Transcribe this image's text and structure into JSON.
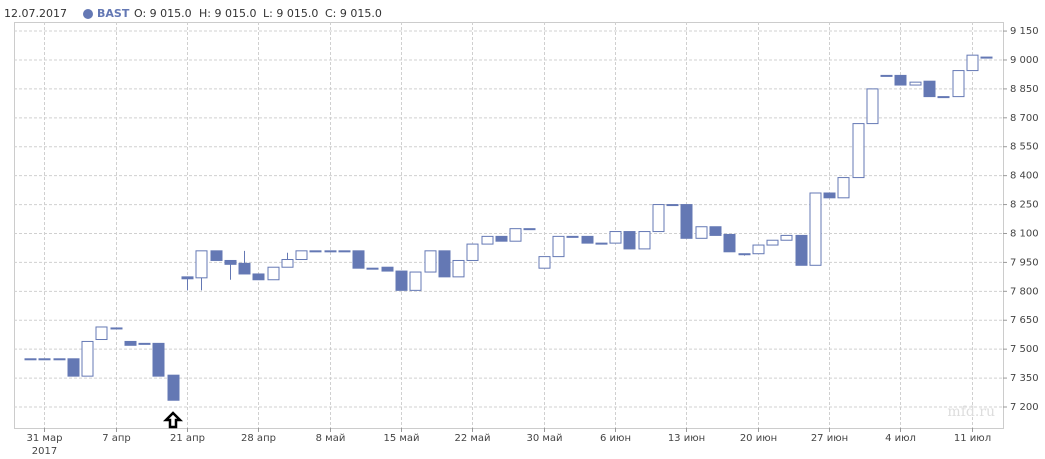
{
  "chart_data": {
    "type": "candlestick",
    "date_label": "12.07.2017",
    "ohlc_labels": [
      "O: 9 015.0",
      "H: 9 015.0",
      "L: 9 015.0",
      "C: 9 015.0"
    ],
    "watermark": "mfd.ru",
    "year_label": "2017",
    "categories": [
      null,
      "31 мар",
      null,
      null,
      null,
      null,
      "7 апр",
      null,
      null,
      null,
      null,
      "21 апр",
      null,
      null,
      null,
      null,
      "28 апр",
      null,
      null,
      null,
      null,
      "8 май",
      null,
      null,
      null,
      null,
      "15 май",
      null,
      null,
      null,
      null,
      "22 май",
      null,
      null,
      null,
      null,
      "30 май",
      null,
      null,
      null,
      null,
      "6 июн",
      null,
      null,
      null,
      null,
      "13 июн",
      null,
      null,
      null,
      null,
      "20 июн",
      null,
      null,
      null,
      null,
      "27 июн",
      null,
      null,
      null,
      null,
      "4 июл",
      null,
      null,
      null,
      null,
      "11 июл",
      null
    ],
    "series": [
      {
        "name": "BAST",
        "color": "#6478b4",
        "up_color": "#ffffff",
        "open": [
          7450,
          7450,
          7450,
          7450,
          7360,
          7550,
          7610,
          7540,
          7530,
          7530,
          7365,
          7875,
          7870,
          8010,
          7960,
          7945,
          7890,
          7860,
          7925,
          7965,
          8010,
          8010,
          8010,
          8010,
          7920,
          7925,
          7905,
          7805,
          7900,
          8010,
          7875,
          7960,
          8045,
          8085,
          8060,
          8125,
          7920,
          7980,
          8085,
          8085,
          8050,
          8050,
          8110,
          8020,
          8110,
          8250,
          8250,
          8075,
          8135,
          8095,
          7995,
          7995,
          8040,
          8065,
          8090,
          7935,
          8310,
          8285,
          8390,
          8670,
          8920,
          8920,
          8870,
          8890,
          8810,
          8810,
          8945,
          9015
        ],
        "high": [
          7450,
          7450,
          7450,
          7450,
          7540,
          7615,
          7610,
          7540,
          7530,
          7530,
          7365,
          7875,
          8010,
          8010,
          7960,
          8010,
          7890,
          7925,
          8000,
          8010,
          8010,
          8010,
          8010,
          8010,
          7920,
          7925,
          7905,
          7900,
          8010,
          8010,
          7960,
          8045,
          8085,
          8085,
          8125,
          8125,
          7980,
          8085,
          8085,
          8085,
          8050,
          8110,
          8110,
          8110,
          8250,
          8250,
          8250,
          8135,
          8135,
          8095,
          7995,
          8040,
          8065,
          8090,
          8090,
          8310,
          8310,
          8390,
          8670,
          8850,
          8920,
          8920,
          8885,
          8890,
          8810,
          8945,
          9025,
          9015
        ],
        "low": [
          7450,
          7450,
          7450,
          7360,
          7360,
          7550,
          7610,
          7520,
          7530,
          7360,
          7235,
          7805,
          7805,
          7960,
          7860,
          7890,
          7860,
          7860,
          7925,
          7965,
          8010,
          8010,
          8010,
          7920,
          7920,
          7905,
          7805,
          7805,
          7900,
          7875,
          7875,
          7960,
          8045,
          8060,
          8060,
          8125,
          7920,
          7980,
          8085,
          8050,
          8050,
          8050,
          8020,
          8020,
          8110,
          8250,
          8075,
          8075,
          8090,
          8005,
          7985,
          7995,
          8040,
          8065,
          7935,
          7935,
          8285,
          8285,
          8390,
          8670,
          8920,
          8870,
          8870,
          8810,
          8810,
          8810,
          8945,
          9015
        ],
        "close": [
          7450,
          7450,
          7450,
          7360,
          7540,
          7615,
          7610,
          7520,
          7530,
          7360,
          7235,
          7865,
          8010,
          7960,
          7940,
          7890,
          7860,
          7925,
          7965,
          8010,
          8010,
          8010,
          8010,
          7920,
          7920,
          7905,
          7805,
          7900,
          8010,
          7875,
          7960,
          8045,
          8085,
          8060,
          8125,
          8125,
          7980,
          8085,
          8085,
          8050,
          8050,
          8110,
          8020,
          8110,
          8250,
          8250,
          8075,
          8135,
          8090,
          8005,
          7995,
          8040,
          8065,
          8090,
          7935,
          8310,
          8285,
          8390,
          8670,
          8850,
          8920,
          8870,
          8885,
          8810,
          8810,
          8945,
          9025,
          9015
        ]
      }
    ],
    "ylim": [
      7091,
      9197
    ],
    "yticks": [
      {
        "value": 7200,
        "label": "7 200"
      },
      {
        "value": 7350,
        "label": "7 350"
      },
      {
        "value": 7500,
        "label": "7 500"
      },
      {
        "value": 7650,
        "label": "7 650"
      },
      {
        "value": 7800,
        "label": "7 800"
      },
      {
        "value": 7950,
        "label": "7 950"
      },
      {
        "value": 8100,
        "label": "8 100"
      },
      {
        "value": 8250,
        "label": "8 250"
      },
      {
        "value": 8400,
        "label": "8 400"
      },
      {
        "value": 8550,
        "label": "8 550"
      },
      {
        "value": 8700,
        "label": "8 700"
      },
      {
        "value": 8850,
        "label": "8 850"
      },
      {
        "value": 9000,
        "label": "9 000"
      },
      {
        "value": 9150,
        "label": "9 150"
      }
    ],
    "grid": true
  }
}
